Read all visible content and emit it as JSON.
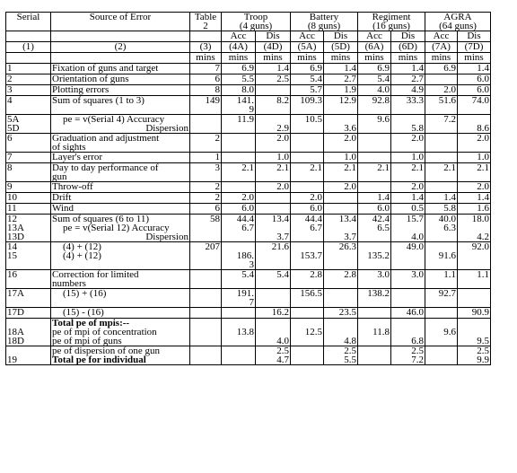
{
  "header": {
    "serial": "Serial",
    "source": "Source of Error",
    "table": "Table 2",
    "troop": "Troop",
    "troop_sub": "(4 guns)",
    "battery": "Battery",
    "battery_sub": "(8 guns)",
    "regiment": "Regiment",
    "regiment_sub": "(16 guns)",
    "agra": "AGRA",
    "agra_sub": "(64 guns)",
    "acc": "Acc",
    "dis": "Dis",
    "mins": "mins"
  },
  "colnums": [
    "(1)",
    "(2)",
    "(3)",
    "(4A)",
    "(4D)",
    "(5A)",
    "(5D)",
    "(6A)",
    "(6D)",
    "(7A)",
    "(7D)"
  ],
  "rows": [
    {
      "serial": "1",
      "source": "Fixation of guns and target",
      "t": "7",
      "v": [
        "6.9",
        "1.4",
        "6.9",
        "1.4",
        "6.9",
        "1.4",
        "6.9",
        "1.4"
      ]
    },
    {
      "serial": "2",
      "source": "Orientation of guns",
      "t": "6",
      "v": [
        "5.5",
        "2.5",
        "5.4",
        "2.7",
        "5.4",
        "2.7",
        "",
        "6.0"
      ]
    },
    {
      "serial": "3",
      "source": "Plotting errors",
      "t": "8",
      "v": [
        "8.0",
        "",
        "5.7",
        "1.9",
        "4.0",
        "4.9",
        "2.0",
        "6.0"
      ]
    },
    {
      "serial": "4",
      "source": "Sum of squares (1 to 3)",
      "t": "149",
      "v": [
        "141.\n9",
        "8.2",
        "109.3",
        "12.9",
        "92.8",
        "33.3",
        "51.6",
        "74.0"
      ]
    },
    {
      "serial": "5A\n5D",
      "source": "pe = v(Serial 4) Accuracy\nDispersion",
      "t": "",
      "v": [
        "11.9",
        "\n2.9",
        "10.5",
        "\n3.6",
        "9.6",
        "\n5.8",
        "7.2",
        "\n8.6"
      ]
    },
    {
      "serial": "6",
      "source": "Graduation and adjustment\nof sights",
      "t": "2",
      "v": [
        "",
        "2.0",
        "",
        "2.0",
        "",
        "2.0",
        "",
        "2.0"
      ]
    },
    {
      "serial": "7",
      "source": "Layer's error",
      "t": "1",
      "v": [
        "",
        "1.0",
        "",
        "1.0",
        "",
        "1.0",
        "",
        "1.0"
      ]
    },
    {
      "serial": "8",
      "source": "Day to day performance of\ngun",
      "t": "3",
      "v": [
        "2.1",
        "2.1",
        "2.1",
        "2.1",
        "2.1",
        "2.1",
        "2.1",
        "2.1"
      ]
    },
    {
      "serial": "9",
      "source": "Throw-off",
      "t": "2",
      "v": [
        "",
        "2.0",
        "",
        "2.0",
        "",
        "2.0",
        "",
        "2.0"
      ]
    },
    {
      "serial": "10",
      "source": "Drift",
      "t": "2",
      "v": [
        "2.0",
        "",
        "2.0",
        "",
        "1.4",
        "1.4",
        "1.4",
        "1.4"
      ]
    },
    {
      "serial": "11",
      "source": "Wind",
      "t": "6",
      "v": [
        "6.0",
        "",
        "6.0",
        "",
        "6.0",
        "0.5",
        "5.8",
        "1.6"
      ]
    },
    {
      "serial": "12\n13A\n13D",
      "source": "Sum of squares (6 to 11)\npe = v(Serial 12) Accuracy\nDispersion",
      "t": "58",
      "v": [
        "44.4\n6.7",
        "13.4\n\n3.7",
        "44.4\n6.7",
        "13.4\n\n3.7",
        "42.4\n6.5",
        "15.7\n\n4.0",
        "40.0\n6.3",
        "18.0\n\n4.2"
      ]
    },
    {
      "serial": "14\n15",
      "source": "(4) + (12)\n(4) + (12)",
      "t": "207",
      "v": [
        "\n186.\n3",
        "21.6",
        "\n153.7",
        "26.3",
        "\n135.2",
        "49.0",
        "\n91.6",
        "92.0"
      ]
    },
    {
      "serial": "16",
      "source": "Correction for limited\nnumbers",
      "t": "",
      "v": [
        "5.4",
        "5.4",
        "2.8",
        "2.8",
        "3.0",
        "3.0",
        "1.1",
        "1.1"
      ]
    },
    {
      "serial": "17A",
      "source": "(15) + (16)",
      "t": "",
      "v": [
        "191.\n7",
        "",
        "156.5",
        "",
        "138.2",
        "",
        "92.7",
        ""
      ]
    },
    {
      "serial": "17D",
      "source": "(15) - (16)",
      "t": "",
      "v": [
        "",
        "16.2",
        "",
        "23.5",
        "",
        "46.0",
        "",
        "90.9"
      ]
    },
    {
      "serial": "\n18A\n18D",
      "source": "Total pe of mpis:--\npe of mpi of concentration\npe of mpi of guns",
      "t": "",
      "v": [
        "\n13.8",
        "\n\n4.0",
        "\n12.5",
        "\n\n4.8",
        "\n11.8",
        "\n\n6.8",
        "\n9.6",
        "\n\n9.5"
      ]
    },
    {
      "serial": "\n19",
      "source": "pe of dispersion of one gun\nTotal pe for individual",
      "t": "",
      "v": [
        "",
        "2.5\n4.7",
        "",
        "2.5\n5.5",
        "",
        "2.5\n7.2",
        "",
        "2.5\n9.9"
      ]
    }
  ]
}
